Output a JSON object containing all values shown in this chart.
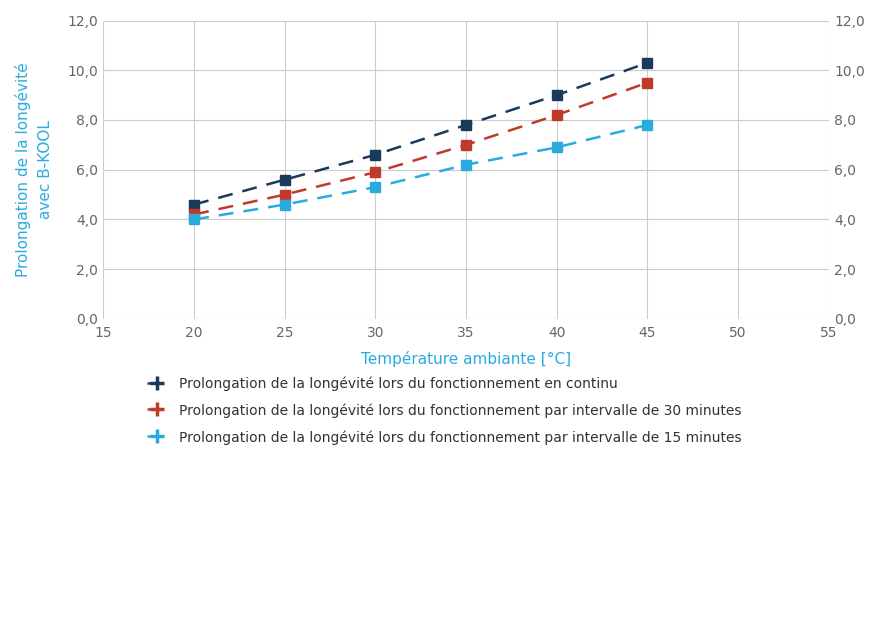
{
  "x": [
    20,
    25,
    30,
    35,
    40,
    45
  ],
  "series": [
    {
      "label": "Prolongation de la longévité lors du fonctionnement en continu",
      "y": [
        4.6,
        5.6,
        6.6,
        7.8,
        9.0,
        10.3
      ],
      "color": "#1a3a5c",
      "marker": "s"
    },
    {
      "label": "Prolongation de la longévité lors du fonctionnement par intervalle de 30 minutes",
      "y": [
        4.2,
        5.0,
        5.9,
        7.0,
        8.2,
        9.5
      ],
      "color": "#c0392b",
      "marker": "s"
    },
    {
      "label": "Prolongation de la longévité lors du fonctionnement par intervalle de 15 minutes",
      "y": [
        4.0,
        4.6,
        5.3,
        6.2,
        6.9,
        7.8
      ],
      "color": "#29abe2",
      "marker": "s"
    }
  ],
  "xlabel": "Température ambiante [°C]",
  "ylabel_top": "Prolongation de la longévité",
  "ylabel_bottom": "avec B-KOOL",
  "xlabel_color": "#29abe2",
  "ylabel_color": "#29abe2",
  "xlim": [
    15,
    55
  ],
  "ylim": [
    0,
    12
  ],
  "xticks": [
    15,
    20,
    25,
    30,
    35,
    40,
    45,
    50,
    55
  ],
  "yticks": [
    0.0,
    2.0,
    4.0,
    6.0,
    8.0,
    10.0,
    12.0
  ],
  "grid_color": "#cccccc",
  "background_color": "#ffffff"
}
